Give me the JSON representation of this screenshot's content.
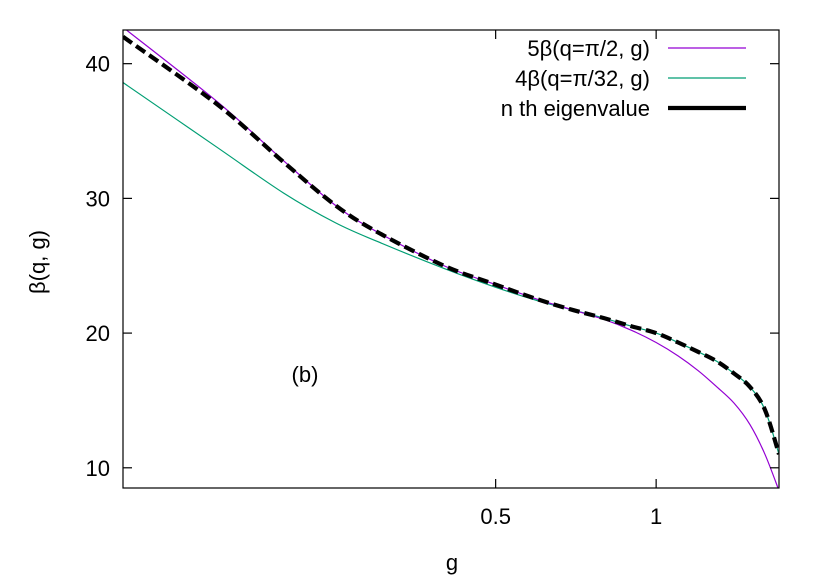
{
  "chart_data": {
    "type": "line",
    "xlabel": "g",
    "ylabel": "β(q, g)",
    "xlim": [
      0.1,
      1.7
    ],
    "ylim": [
      8.5,
      42.5
    ],
    "xscale": "log",
    "xticks": [
      0.5,
      1
    ],
    "xtick_labels": [
      "0.5",
      "1"
    ],
    "yticks": [
      10,
      20,
      30,
      40
    ],
    "ytick_labels": [
      "10",
      "20",
      "30",
      "40"
    ],
    "grid": false,
    "legend_position": "top-right",
    "annotation": "(b)",
    "series": [
      {
        "name": "5β(q=π/2, g)",
        "color": "#9400d3",
        "style": "solid",
        "x": [
          0.1,
          0.15,
          0.2,
          0.25,
          0.3,
          0.4,
          0.5,
          0.6,
          0.7,
          0.8,
          0.9,
          1.0,
          1.1,
          1.2,
          1.3,
          1.4,
          1.5,
          1.6,
          1.7
        ],
        "y": [
          42.7,
          37.2,
          32.8,
          29.5,
          27.5,
          25.0,
          23.6,
          22.5,
          21.7,
          21.0,
          20.2,
          19.3,
          18.3,
          17.2,
          16.0,
          14.8,
          13.2,
          11.0,
          8.3
        ]
      },
      {
        "name": "4β(q=π/32, g)",
        "color": "#009e73",
        "style": "solid",
        "x": [
          0.1,
          0.15,
          0.2,
          0.25,
          0.3,
          0.4,
          0.5,
          0.6,
          0.7,
          0.8,
          0.9,
          1.0,
          1.1,
          1.2,
          1.3,
          1.4,
          1.5,
          1.6,
          1.7
        ],
        "y": [
          38.6,
          33.8,
          30.4,
          28.2,
          26.8,
          24.8,
          23.4,
          22.4,
          21.7,
          21.1,
          20.5,
          20.0,
          19.3,
          18.6,
          17.9,
          17.0,
          16.0,
          14.3,
          11.0
        ]
      },
      {
        "name": "n th eigenvalue",
        "color": "#000000",
        "style": "dashed",
        "x": [
          0.1,
          0.15,
          0.2,
          0.25,
          0.3,
          0.4,
          0.5,
          0.6,
          0.7,
          0.8,
          0.9,
          1.0,
          1.1,
          1.2,
          1.3,
          1.4,
          1.5,
          1.6,
          1.7
        ],
        "y": [
          42.0,
          37.0,
          32.7,
          29.5,
          27.5,
          25.0,
          23.6,
          22.5,
          21.7,
          21.1,
          20.5,
          20.0,
          19.3,
          18.6,
          17.9,
          17.0,
          16.0,
          14.3,
          11.0
        ]
      }
    ]
  }
}
